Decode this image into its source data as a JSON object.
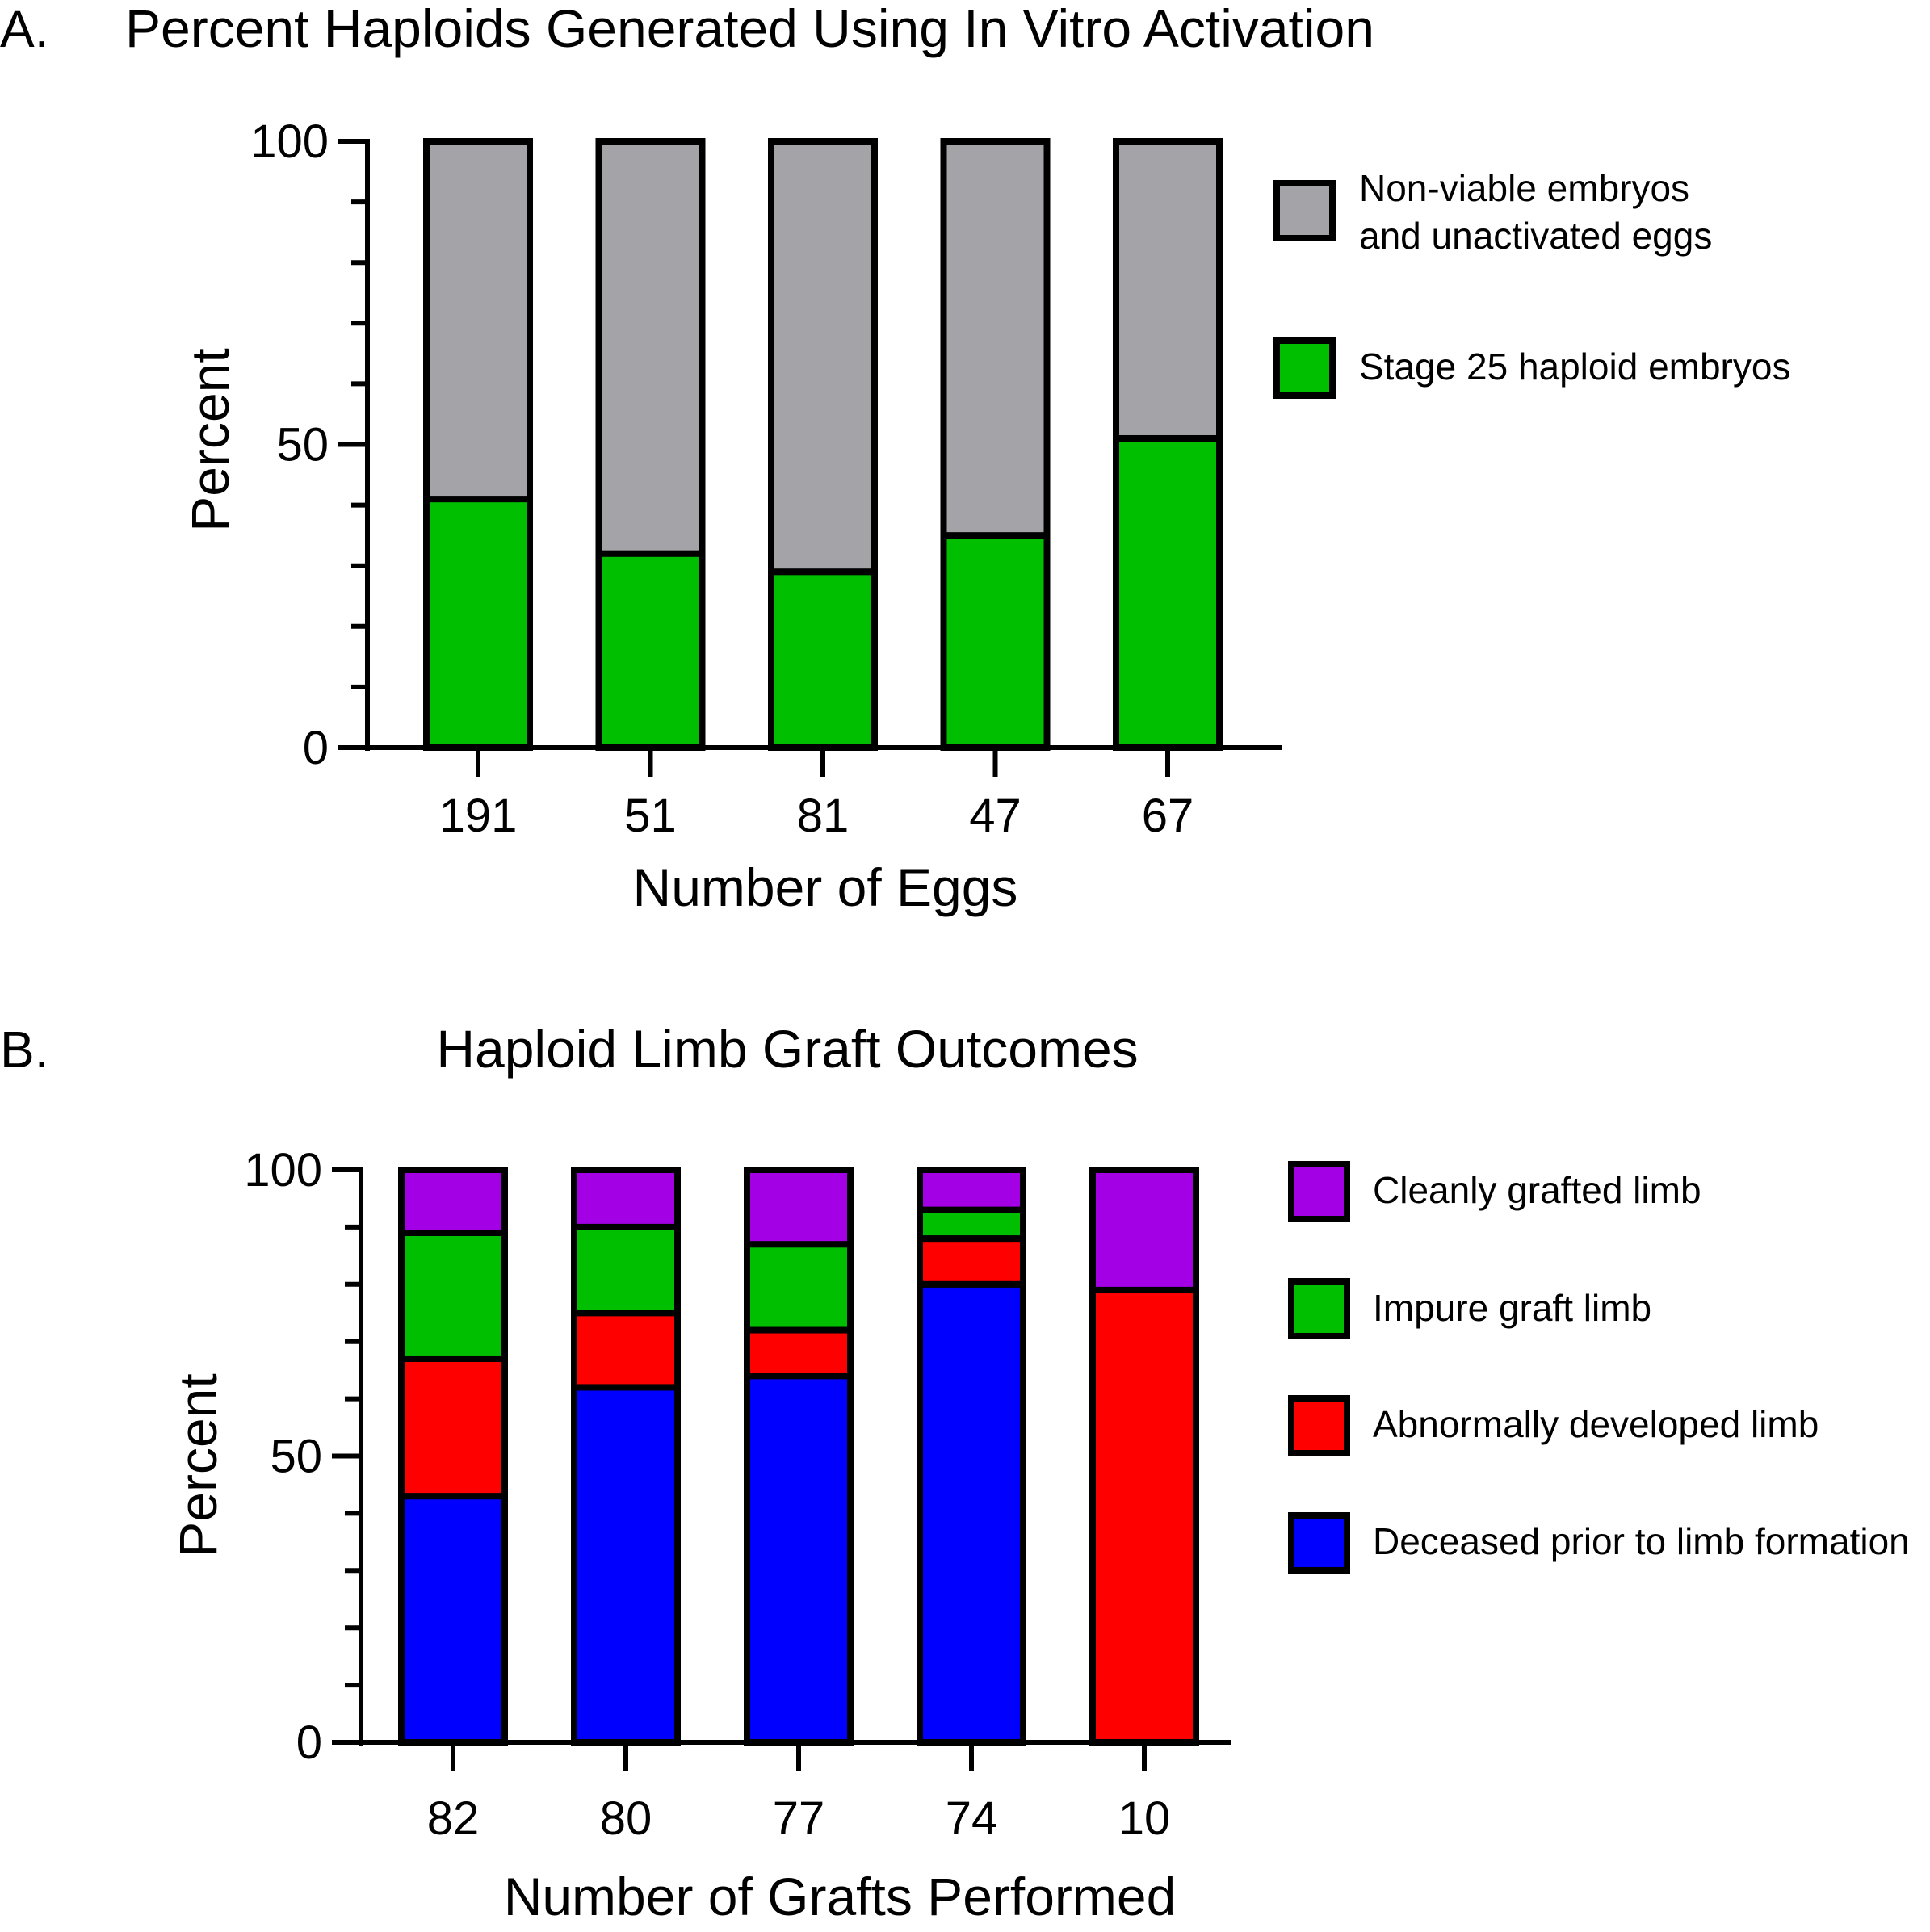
{
  "chart_data": [
    {
      "type": "bar",
      "stacked": true,
      "panel_label": "A.",
      "title": "Percent Haploids Generated Using In Vitro Activation",
      "xlabel": "Number of Eggs",
      "ylabel": "Percent",
      "ylim": [
        0,
        100
      ],
      "yticks": [
        0,
        50,
        100
      ],
      "categories": [
        "191",
        "51",
        "81",
        "47",
        "67"
      ],
      "legend_position": "right",
      "series": [
        {
          "name": "Stage 25 haploid embryos",
          "color": "#00bf00",
          "values": [
            41,
            32,
            29,
            35,
            51
          ]
        },
        {
          "name": "Non-viable embryos and unactivated eggs",
          "legend_lines": [
            "Non-viable embryos",
            "and unactivated eggs"
          ],
          "color": "#a3a3a8",
          "values": [
            59,
            68,
            71,
            65,
            49
          ]
        }
      ]
    },
    {
      "type": "bar",
      "stacked": true,
      "panel_label": "B.",
      "title": "Haploid Limb Graft Outcomes",
      "xlabel": "Number of Grafts Performed",
      "ylabel": "Percent",
      "ylim": [
        0,
        100
      ],
      "yticks": [
        0,
        50,
        100
      ],
      "categories": [
        "82",
        "80",
        "77",
        "74",
        "10"
      ],
      "legend_position": "right",
      "series": [
        {
          "name": "Deceased prior to limb formation",
          "color": "#0000ff",
          "values": [
            43,
            62,
            64,
            80,
            0
          ]
        },
        {
          "name": "Abnormally developed limb",
          "color": "#ff0000",
          "values": [
            24,
            13,
            8,
            8,
            79
          ]
        },
        {
          "name": "Impure graft limb",
          "color": "#00bf00",
          "values": [
            22,
            15,
            15,
            5,
            0
          ]
        },
        {
          "name": "Cleanly grafted limb",
          "color": "#a300e5",
          "values": [
            11,
            10,
            13,
            7,
            21
          ]
        }
      ]
    }
  ]
}
